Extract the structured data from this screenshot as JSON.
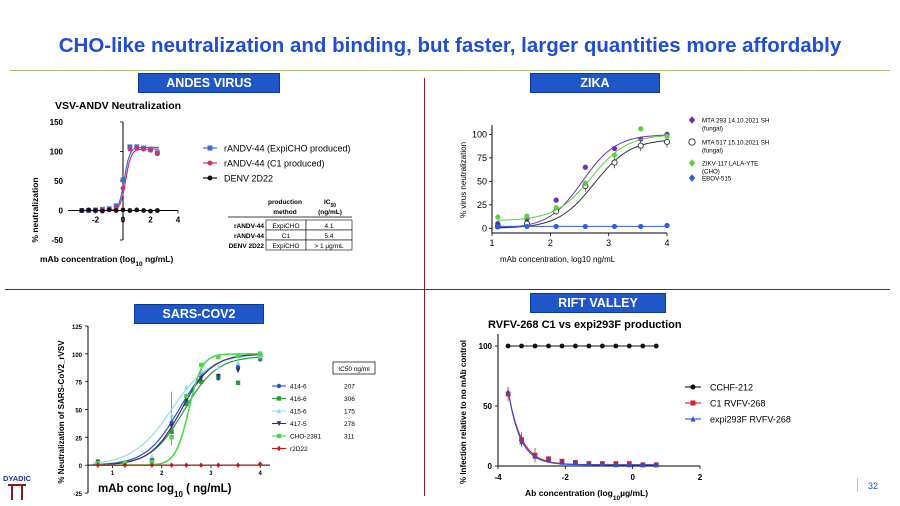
{
  "title": "CHO-like neutralization and binding, but faster, larger quantities more affordably",
  "page_number": "32",
  "logo_text": "DYADIC",
  "colors": {
    "title_blue": "#1f4fd0",
    "badge_blue": "#1f57c9",
    "divider": "#8b1a1a"
  },
  "panels": {
    "andes": {
      "badge": "ANDES VIRUS",
      "table": {
        "header1": [
          "production",
          "IC50"
        ],
        "header2": [
          "method",
          "(ng/mL)"
        ],
        "rows": [
          [
            "rANDV-44",
            "ExpiCHO",
            "4.1"
          ],
          [
            "rANDV-44",
            "C1",
            "5.4"
          ],
          [
            "DENV 2D22",
            "ExpiCHO",
            "> 1 µg/mL"
          ]
        ]
      }
    },
    "zika": {
      "badge": "ZIKA"
    },
    "sars": {
      "badge": "SARS-COV2",
      "ic50_header": "IC50 ng/ml",
      "ic50_values": [
        "207",
        "306",
        "175",
        "278",
        "311",
        ""
      ]
    },
    "rift": {
      "badge": "RIFT VALLEY"
    }
  },
  "chart_data": [
    {
      "id": "andes",
      "type": "scatter",
      "title": "VSV-ANDV Neutralization",
      "xlabel": "mAb concentration (log10 ng/mL)",
      "ylabel": "% neutralization",
      "xlim": [
        -4,
        4
      ],
      "ylim": [
        -50,
        150
      ],
      "xticks": [
        "-2",
        "0",
        "2",
        "4"
      ],
      "xtick_values": [
        -2,
        0,
        2,
        4
      ],
      "yticks": [
        "-50",
        "0",
        "50",
        "100",
        "150"
      ],
      "ytick_values": [
        -50,
        0,
        50,
        100,
        150
      ],
      "series": [
        {
          "name": "rANDV-44 (ExpiCHO produced)",
          "color": "#3a6fd8",
          "marker": "square",
          "x": [
            -3,
            -2.5,
            -2,
            -1.5,
            -1,
            -0.5,
            0,
            0.5,
            1,
            1.5,
            2,
            2.5
          ],
          "y": [
            0,
            0,
            1,
            2,
            3,
            8,
            52,
            108,
            108,
            106,
            104,
            98
          ]
        },
        {
          "name": "rANDV-44 (C1 produced)",
          "color": "#c8326e",
          "marker": "circle",
          "x": [
            -3,
            -2.5,
            -2,
            -1.5,
            -1,
            -0.5,
            0,
            0.5,
            1,
            1.5,
            2,
            2.5
          ],
          "y": [
            0,
            0,
            0,
            1,
            2,
            5,
            38,
            104,
            106,
            104,
            102,
            96
          ]
        },
        {
          "name": "DENV 2D22",
          "color": "#111111",
          "marker": "circle",
          "x": [
            -3,
            -2.5,
            -2,
            -1.5,
            -1,
            -0.5,
            0,
            0.5,
            1,
            1.5,
            2,
            2.5
          ],
          "y": [
            0,
            1,
            0,
            -1,
            1,
            0,
            1,
            0,
            1,
            0,
            -1,
            0
          ]
        }
      ]
    },
    {
      "id": "zika",
      "type": "scatter",
      "title": "",
      "xlabel": "mAb concentration, log10 ng/mL",
      "ylabel": "% virus neutralization",
      "xlim": [
        1,
        4
      ],
      "ylim": [
        -5,
        110
      ],
      "xticks": [
        "1",
        "2",
        "3",
        "4"
      ],
      "xtick_values": [
        1,
        2,
        3,
        4
      ],
      "yticks": [
        "0",
        "25",
        "50",
        "75",
        "100"
      ],
      "ytick_values": [
        0,
        25,
        50,
        75,
        100
      ],
      "series": [
        {
          "name": "MTA 293 14.10.2021 SH (fungal)",
          "color": "#6a2fb8",
          "marker": "circle",
          "x": [
            1.1,
            1.6,
            2.1,
            2.6,
            3.1,
            3.55,
            4.0
          ],
          "y": [
            5,
            10,
            30,
            65,
            85,
            95,
            100
          ]
        },
        {
          "name": "MTA 517 15.10.2021 SH (fungal)",
          "color": "#333333",
          "marker": "open-circle",
          "x": [
            1.1,
            1.6,
            2.1,
            2.6,
            3.1,
            3.55,
            4.0
          ],
          "y": [
            2,
            5,
            18,
            45,
            70,
            88,
            92
          ]
        },
        {
          "name": "ZIKV-117 LALA-YTE (CHO)",
          "color": "#5fcf3f",
          "marker": "circle",
          "x": [
            1.1,
            1.6,
            2.1,
            2.6,
            3.1,
            3.55,
            4.0
          ],
          "y": [
            12,
            13,
            22,
            48,
            78,
            106,
            98
          ]
        },
        {
          "name": "EBOV-515",
          "color": "#2c5fd8",
          "marker": "circle",
          "x": [
            1.1,
            1.6,
            2.1,
            2.6,
            3.1,
            3.55,
            4.0
          ],
          "y": [
            2,
            2,
            2,
            2,
            2,
            2,
            3
          ]
        }
      ]
    },
    {
      "id": "sars",
      "type": "line",
      "title": "",
      "xlabel": "mAb conc log10 ( ng/mL)",
      "ylabel": "% Neutralization of SARS-CoV2_rVSV",
      "xlim": [
        0.5,
        4.2
      ],
      "ylim": [
        -25,
        125
      ],
      "xticks": [
        "1",
        "2",
        "3",
        "4"
      ],
      "xtick_values": [
        1,
        2,
        3,
        4
      ],
      "yticks": [
        "-25",
        "0",
        "25",
        "50",
        "75",
        "100",
        "125"
      ],
      "ytick_values": [
        -25,
        0,
        25,
        50,
        75,
        100,
        125
      ],
      "series": [
        {
          "name": "414-6",
          "color": "#2255cc",
          "marker": "circle",
          "x": [
            0.7,
            1.25,
            1.8,
            2.2,
            2.5,
            2.8,
            3.15,
            3.55,
            4.0
          ],
          "y": [
            3,
            2,
            5,
            38,
            58,
            82,
            78,
            88,
            95
          ]
        },
        {
          "name": "416-6",
          "color": "#2a9a3a",
          "marker": "square",
          "x": [
            0.7,
            1.25,
            1.8,
            2.2,
            2.5,
            2.8,
            3.15,
            3.55,
            4.0
          ],
          "y": [
            2,
            1,
            3,
            30,
            55,
            75,
            80,
            74,
            96
          ]
        },
        {
          "name": "415-6",
          "color": "#8fd9f0",
          "marker": "triangle",
          "x": [
            0.7,
            1.25,
            1.8,
            2.2,
            2.5,
            2.8,
            3.15,
            3.55,
            4.0
          ],
          "y": [
            4,
            3,
            8,
            45,
            70,
            85,
            88,
            92,
            98
          ]
        },
        {
          "name": "417-5",
          "color": "#3a2e6e",
          "marker": "triangle-down",
          "x": [
            0.7,
            1.25,
            1.8,
            2.2,
            2.5,
            2.8,
            3.15,
            3.55,
            4.0
          ],
          "y": [
            3,
            2,
            4,
            35,
            60,
            78,
            80,
            85,
            100
          ]
        },
        {
          "name": "CHO-2381",
          "color": "#4bd64b",
          "marker": "square",
          "x": [
            0.7,
            1.25,
            1.8,
            2.2,
            2.5,
            2.8,
            3.15,
            3.55,
            4.0
          ],
          "y": [
            2,
            2,
            3,
            25,
            62,
            90,
            97,
            98,
            100
          ]
        },
        {
          "name": "r2D22",
          "color": "#c01818",
          "marker": "diamond",
          "x": [
            0.7,
            1.25,
            1.8,
            2.2,
            2.5,
            2.8,
            3.15,
            3.55,
            4.0
          ],
          "y": [
            0,
            0,
            0,
            0,
            0,
            0,
            0,
            0,
            1
          ]
        }
      ]
    },
    {
      "id": "rift",
      "type": "scatter",
      "title": "RVFV-268 C1 vs expi293F production",
      "xlabel": "Ab concentration (log10µg/mL)",
      "ylabel": "% Infection relative to no mAb control",
      "xlim": [
        -4,
        2
      ],
      "ylim": [
        0,
        110
      ],
      "xticks": [
        "-4",
        "-2",
        "0",
        "2"
      ],
      "xtick_values": [
        -4,
        -2,
        0,
        2
      ],
      "yticks": [
        "0",
        "50",
        "100"
      ],
      "ytick_values": [
        0,
        50,
        100
      ],
      "series": [
        {
          "name": "CCHF-212",
          "color": "#111111",
          "marker": "circle",
          "x": [
            -3.7,
            -3.3,
            -2.9,
            -2.5,
            -2.1,
            -1.7,
            -1.3,
            -0.9,
            -0.5,
            -0.1,
            0.3,
            0.7
          ],
          "y": [
            100,
            100,
            100,
            100,
            100,
            100,
            100,
            100,
            100,
            100,
            100,
            100
          ]
        },
        {
          "name": "C1 RVFV-268",
          "color": "#dd1f1f",
          "marker": "square",
          "x": [
            -3.7,
            -3.3,
            -2.9,
            -2.5,
            -2.1,
            -1.7,
            -1.3,
            -0.9,
            -0.5,
            -0.1,
            0.3,
            0.7
          ],
          "y": [
            60,
            22,
            9,
            6,
            4,
            3,
            2,
            2,
            2,
            2,
            1,
            1
          ]
        },
        {
          "name": "expi293F RVFV-268",
          "color": "#2a4fd8",
          "marker": "triangle",
          "x": [
            -3.7,
            -3.3,
            -2.9,
            -2.5,
            -2.1,
            -1.7,
            -1.3,
            -0.9,
            -0.5,
            -0.1,
            0.3,
            0.7
          ],
          "y": [
            62,
            20,
            8,
            5,
            3,
            3,
            2,
            2,
            1,
            1,
            1,
            1
          ]
        }
      ]
    }
  ]
}
